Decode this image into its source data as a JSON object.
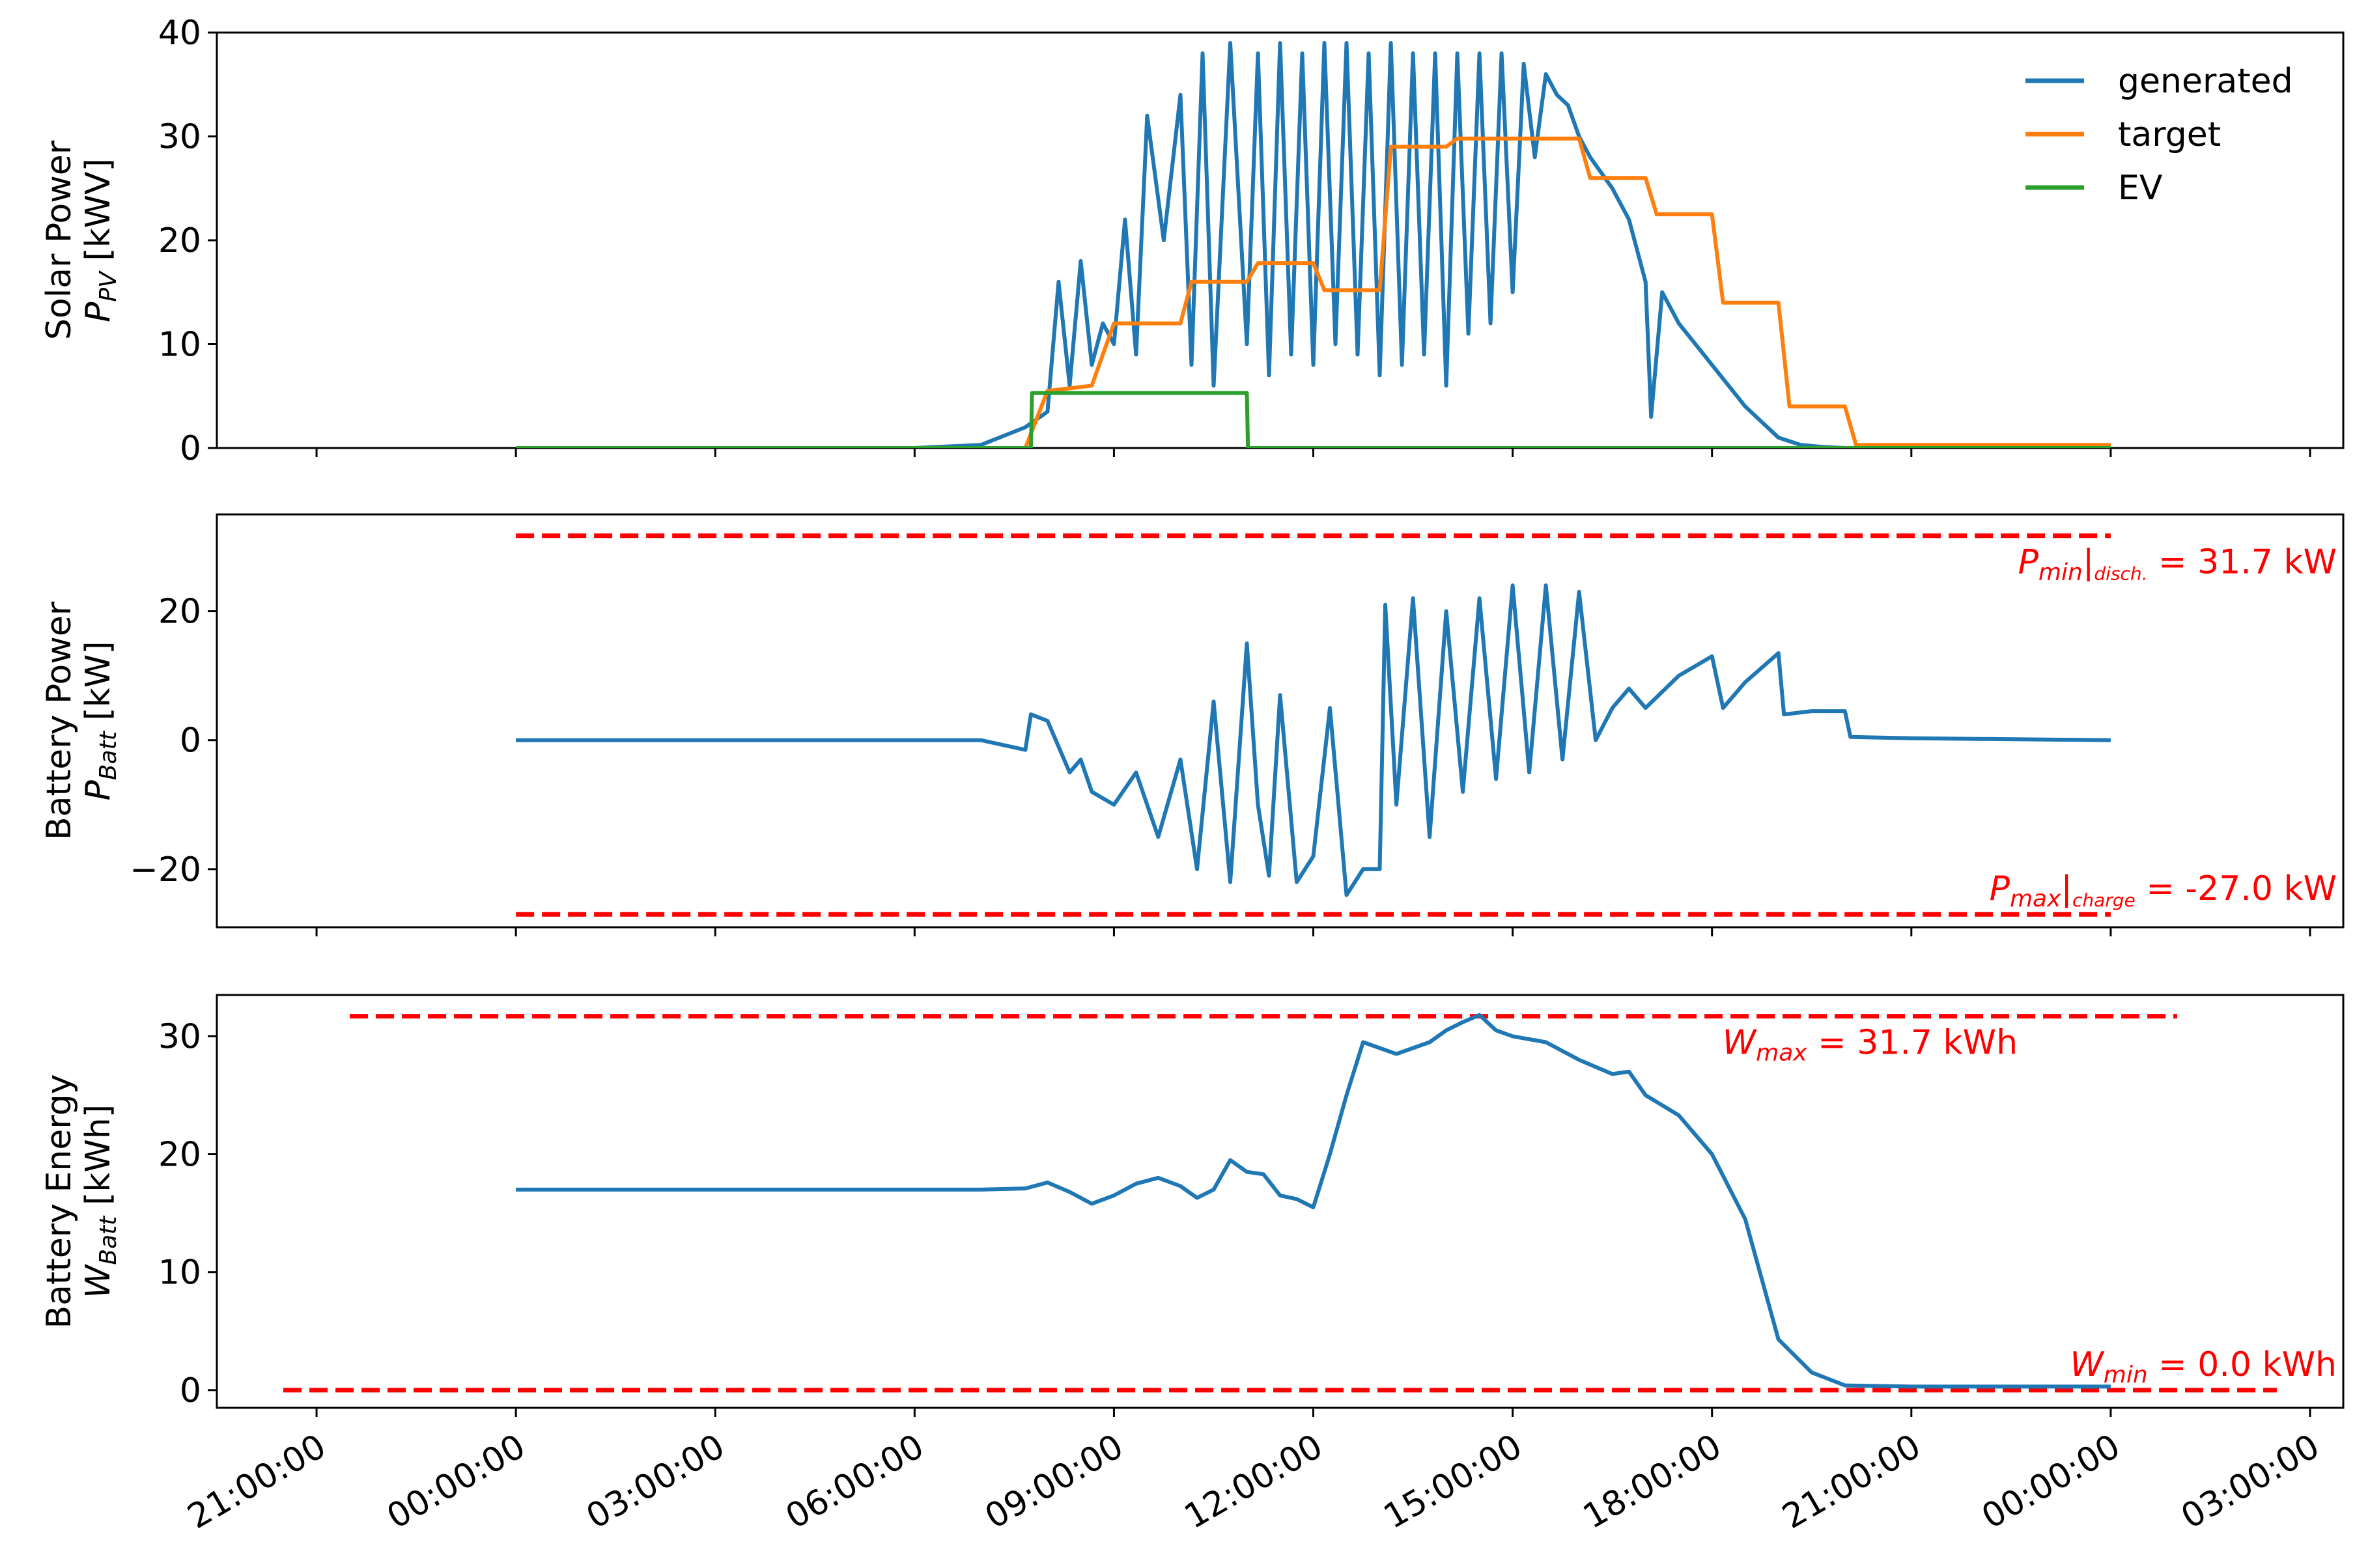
{
  "chart_data": [
    {
      "type": "line",
      "ylabel": "Solar Power",
      "ylabel_symbol": "P",
      "ylabel_subscript": "PV",
      "ylabel_unit": "[kWV]",
      "ylim": [
        0,
        40
      ],
      "yticks": [
        0,
        10,
        20,
        30,
        40
      ],
      "xlim_hours": [
        -4.5,
        27.5
      ],
      "legend": {
        "placement": "top-right",
        "entries": [
          "generated",
          "target",
          "EV"
        ]
      },
      "series": [
        {
          "name": "generated",
          "color": "#1f77b4",
          "x": [
            "00:00:00",
            "06:00:00",
            "07:00:00",
            "07:40:00",
            "08:00:00",
            "08:10:00",
            "08:20:00",
            "08:30:00",
            "08:40:00",
            "08:50:00",
            "09:00:00",
            "09:10:00",
            "09:20:00",
            "09:30:00",
            "09:45:00",
            "10:00:00",
            "10:10:00",
            "10:20:00",
            "10:30:00",
            "10:45:00",
            "11:00:00",
            "11:10:00",
            "11:20:00",
            "11:30:00",
            "11:40:00",
            "11:50:00",
            "12:00:00",
            "12:10:00",
            "12:20:00",
            "12:30:00",
            "12:40:00",
            "12:50:00",
            "13:00:00",
            "13:10:00",
            "13:20:00",
            "13:30:00",
            "13:40:00",
            "13:50:00",
            "14:00:00",
            "14:10:00",
            "14:20:00",
            "14:30:00",
            "14:40:00",
            "14:50:00",
            "15:00:00",
            "15:10:00",
            "15:20:00",
            "15:30:00",
            "15:40:00",
            "15:50:00",
            "16:00:00",
            "16:10:00",
            "16:30:00",
            "16:45:00",
            "17:00:00",
            "17:05:00",
            "17:15:00",
            "17:30:00",
            "18:00:00",
            "18:30:00",
            "19:00:00",
            "19:20:00",
            "19:40:00",
            "20:00:00",
            "21:00:00",
            "24:00:00"
          ],
          "values": [
            0,
            0,
            0.3,
            2,
            3.5,
            16,
            6,
            18,
            8,
            12,
            10,
            22,
            9,
            32,
            20,
            34,
            8,
            38,
            6,
            39,
            10,
            38,
            7,
            39,
            9,
            38,
            8,
            39,
            10,
            39,
            9,
            38,
            7,
            39,
            8,
            38,
            9,
            38,
            6,
            38,
            11,
            38,
            12,
            38,
            15,
            37,
            28,
            36,
            34,
            33,
            30,
            28,
            25,
            22,
            16,
            3,
            15,
            12,
            8,
            4,
            1,
            0.3,
            0.1,
            0,
            0,
            0
          ]
        },
        {
          "name": "target",
          "color": "#ff7f0e",
          "x": [
            "07:40:00",
            "08:00:00",
            "08:40:00",
            "09:00:00",
            "10:00:00",
            "10:10:00",
            "11:00:00",
            "11:10:00",
            "12:00:00",
            "12:10:00",
            "13:00:00",
            "13:10:00",
            "14:00:00",
            "14:10:00",
            "16:00:00",
            "16:10:00",
            "17:00:00",
            "17:10:00",
            "18:00:00",
            "18:10:00",
            "19:00:00",
            "19:10:00",
            "20:00:00",
            "20:10:00",
            "24:00:00"
          ],
          "values": [
            0,
            5.5,
            6,
            12,
            12,
            16,
            16,
            17.8,
            17.8,
            15.2,
            15.2,
            29,
            29,
            29.8,
            29.8,
            26,
            26,
            22.5,
            22.5,
            14,
            14,
            4,
            4,
            0.3,
            0.3
          ]
        },
        {
          "name": "EV",
          "color": "#2ca02c",
          "x": [
            "00:00:00",
            "07:45:00",
            "07:46:00",
            "11:00:00",
            "11:01:00",
            "24:00:00"
          ],
          "values": [
            0,
            0,
            5.3,
            5.3,
            0,
            0
          ]
        }
      ]
    },
    {
      "type": "line",
      "ylabel": "Battery Power",
      "ylabel_symbol": "P",
      "ylabel_subscript": "Batt",
      "ylabel_unit": "[kW]",
      "ylim": [
        -29,
        35
      ],
      "yticks": [
        -20,
        0,
        20
      ],
      "ytick_labels": [
        "−20",
        "0",
        "20"
      ],
      "xlim_hours": [
        -4.5,
        27.5
      ],
      "limits": [
        {
          "value": 31.7,
          "color": "#ff0000",
          "label_symbol": "P",
          "label_sub": "min",
          "label_mid": "|",
          "label_sub2": "disch.",
          "label_rest": " = 31.7 kW"
        },
        {
          "value": -27.0,
          "color": "#ff0000",
          "label_symbol": "P",
          "label_sub": "max",
          "label_mid": "|",
          "label_sub2": "charge",
          "label_rest": " = -27.0 kW"
        }
      ],
      "series": [
        {
          "name": "battery_power",
          "color": "#1f77b4",
          "x": [
            "00:00:00",
            "07:00:00",
            "07:40:00",
            "07:45:00",
            "08:00:00",
            "08:20:00",
            "08:30:00",
            "08:40:00",
            "09:00:00",
            "09:20:00",
            "09:40:00",
            "10:00:00",
            "10:15:00",
            "10:30:00",
            "10:45:00",
            "11:00:00",
            "11:10:00",
            "11:20:00",
            "11:30:00",
            "11:45:00",
            "12:00:00",
            "12:15:00",
            "12:30:00",
            "12:45:00",
            "13:00:00",
            "13:05:00",
            "13:15:00",
            "13:30:00",
            "13:45:00",
            "14:00:00",
            "14:15:00",
            "14:30:00",
            "14:45:00",
            "15:00:00",
            "15:15:00",
            "15:30:00",
            "15:45:00",
            "16:00:00",
            "16:15:00",
            "16:30:00",
            "16:45:00",
            "17:00:00",
            "17:30:00",
            "18:00:00",
            "18:10:00",
            "18:30:00",
            "19:00:00",
            "19:05:00",
            "19:30:00",
            "20:00:00",
            "20:05:00",
            "21:00:00",
            "24:00:00"
          ],
          "values": [
            0,
            0,
            -1.5,
            4,
            3,
            -5,
            -3,
            -8,
            -10,
            -5,
            -15,
            -3,
            -20,
            6,
            -22,
            15,
            -10,
            -21,
            7,
            -22,
            -18,
            5,
            -24,
            -20,
            -20,
            21,
            -10,
            22,
            -15,
            20,
            -8,
            22,
            -6,
            24,
            -5,
            24,
            -3,
            23,
            0,
            5,
            8,
            5,
            10,
            13,
            5,
            9,
            13.5,
            4,
            4.5,
            4.5,
            0.5,
            0.3,
            0
          ]
        }
      ]
    },
    {
      "type": "line",
      "ylabel": "Battery Energy",
      "ylabel_symbol": "W",
      "ylabel_subscript": "Batt",
      "ylabel_unit": "[kWh]",
      "ylim": [
        -1.5,
        33.5
      ],
      "yticks": [
        0,
        10,
        20,
        30
      ],
      "xlim_hours": [
        -4.5,
        27.5
      ],
      "limits": [
        {
          "value": 31.7,
          "color": "#ff0000",
          "label_symbol": "W",
          "label_sub": "max",
          "label_rest": " = 31.7 kWh"
        },
        {
          "value": 0.0,
          "color": "#ff0000",
          "label_symbol": "W",
          "label_sub": "min",
          "label_rest": " = 0.0 kWh"
        }
      ],
      "series": [
        {
          "name": "battery_energy",
          "color": "#1f77b4",
          "x": [
            "00:00:00",
            "07:00:00",
            "07:40:00",
            "08:00:00",
            "08:20:00",
            "08:40:00",
            "09:00:00",
            "09:20:00",
            "09:40:00",
            "10:00:00",
            "10:15:00",
            "10:30:00",
            "10:45:00",
            "11:00:00",
            "11:15:00",
            "11:30:00",
            "11:45:00",
            "12:00:00",
            "12:15:00",
            "12:30:00",
            "12:45:00",
            "13:00:00",
            "13:15:00",
            "13:30:00",
            "13:45:00",
            "14:00:00",
            "14:15:00",
            "14:30:00",
            "14:45:00",
            "15:00:00",
            "15:30:00",
            "16:00:00",
            "16:30:00",
            "16:45:00",
            "17:00:00",
            "17:30:00",
            "18:00:00",
            "18:30:00",
            "19:00:00",
            "19:30:00",
            "20:00:00",
            "21:00:00",
            "24:00:00"
          ],
          "values": [
            17,
            17,
            17.1,
            17.6,
            16.8,
            15.8,
            16.5,
            17.5,
            18,
            17.3,
            16.3,
            17,
            19.5,
            18.5,
            18.3,
            16.5,
            16.2,
            15.5,
            20,
            25,
            29.5,
            29,
            28.5,
            29,
            29.5,
            30.5,
            31.2,
            31.8,
            30.5,
            30,
            29.5,
            28,
            26.8,
            27,
            25,
            23.3,
            20,
            14.5,
            4.3,
            1.5,
            0.4,
            0.3,
            0.3
          ]
        }
      ]
    }
  ],
  "x_tick_labels": [
    "21:00:00",
    "00:00:00",
    "03:00:00",
    "06:00:00",
    "09:00:00",
    "12:00:00",
    "15:00:00",
    "18:00:00",
    "21:00:00",
    "00:00:00",
    "03:00:00"
  ]
}
